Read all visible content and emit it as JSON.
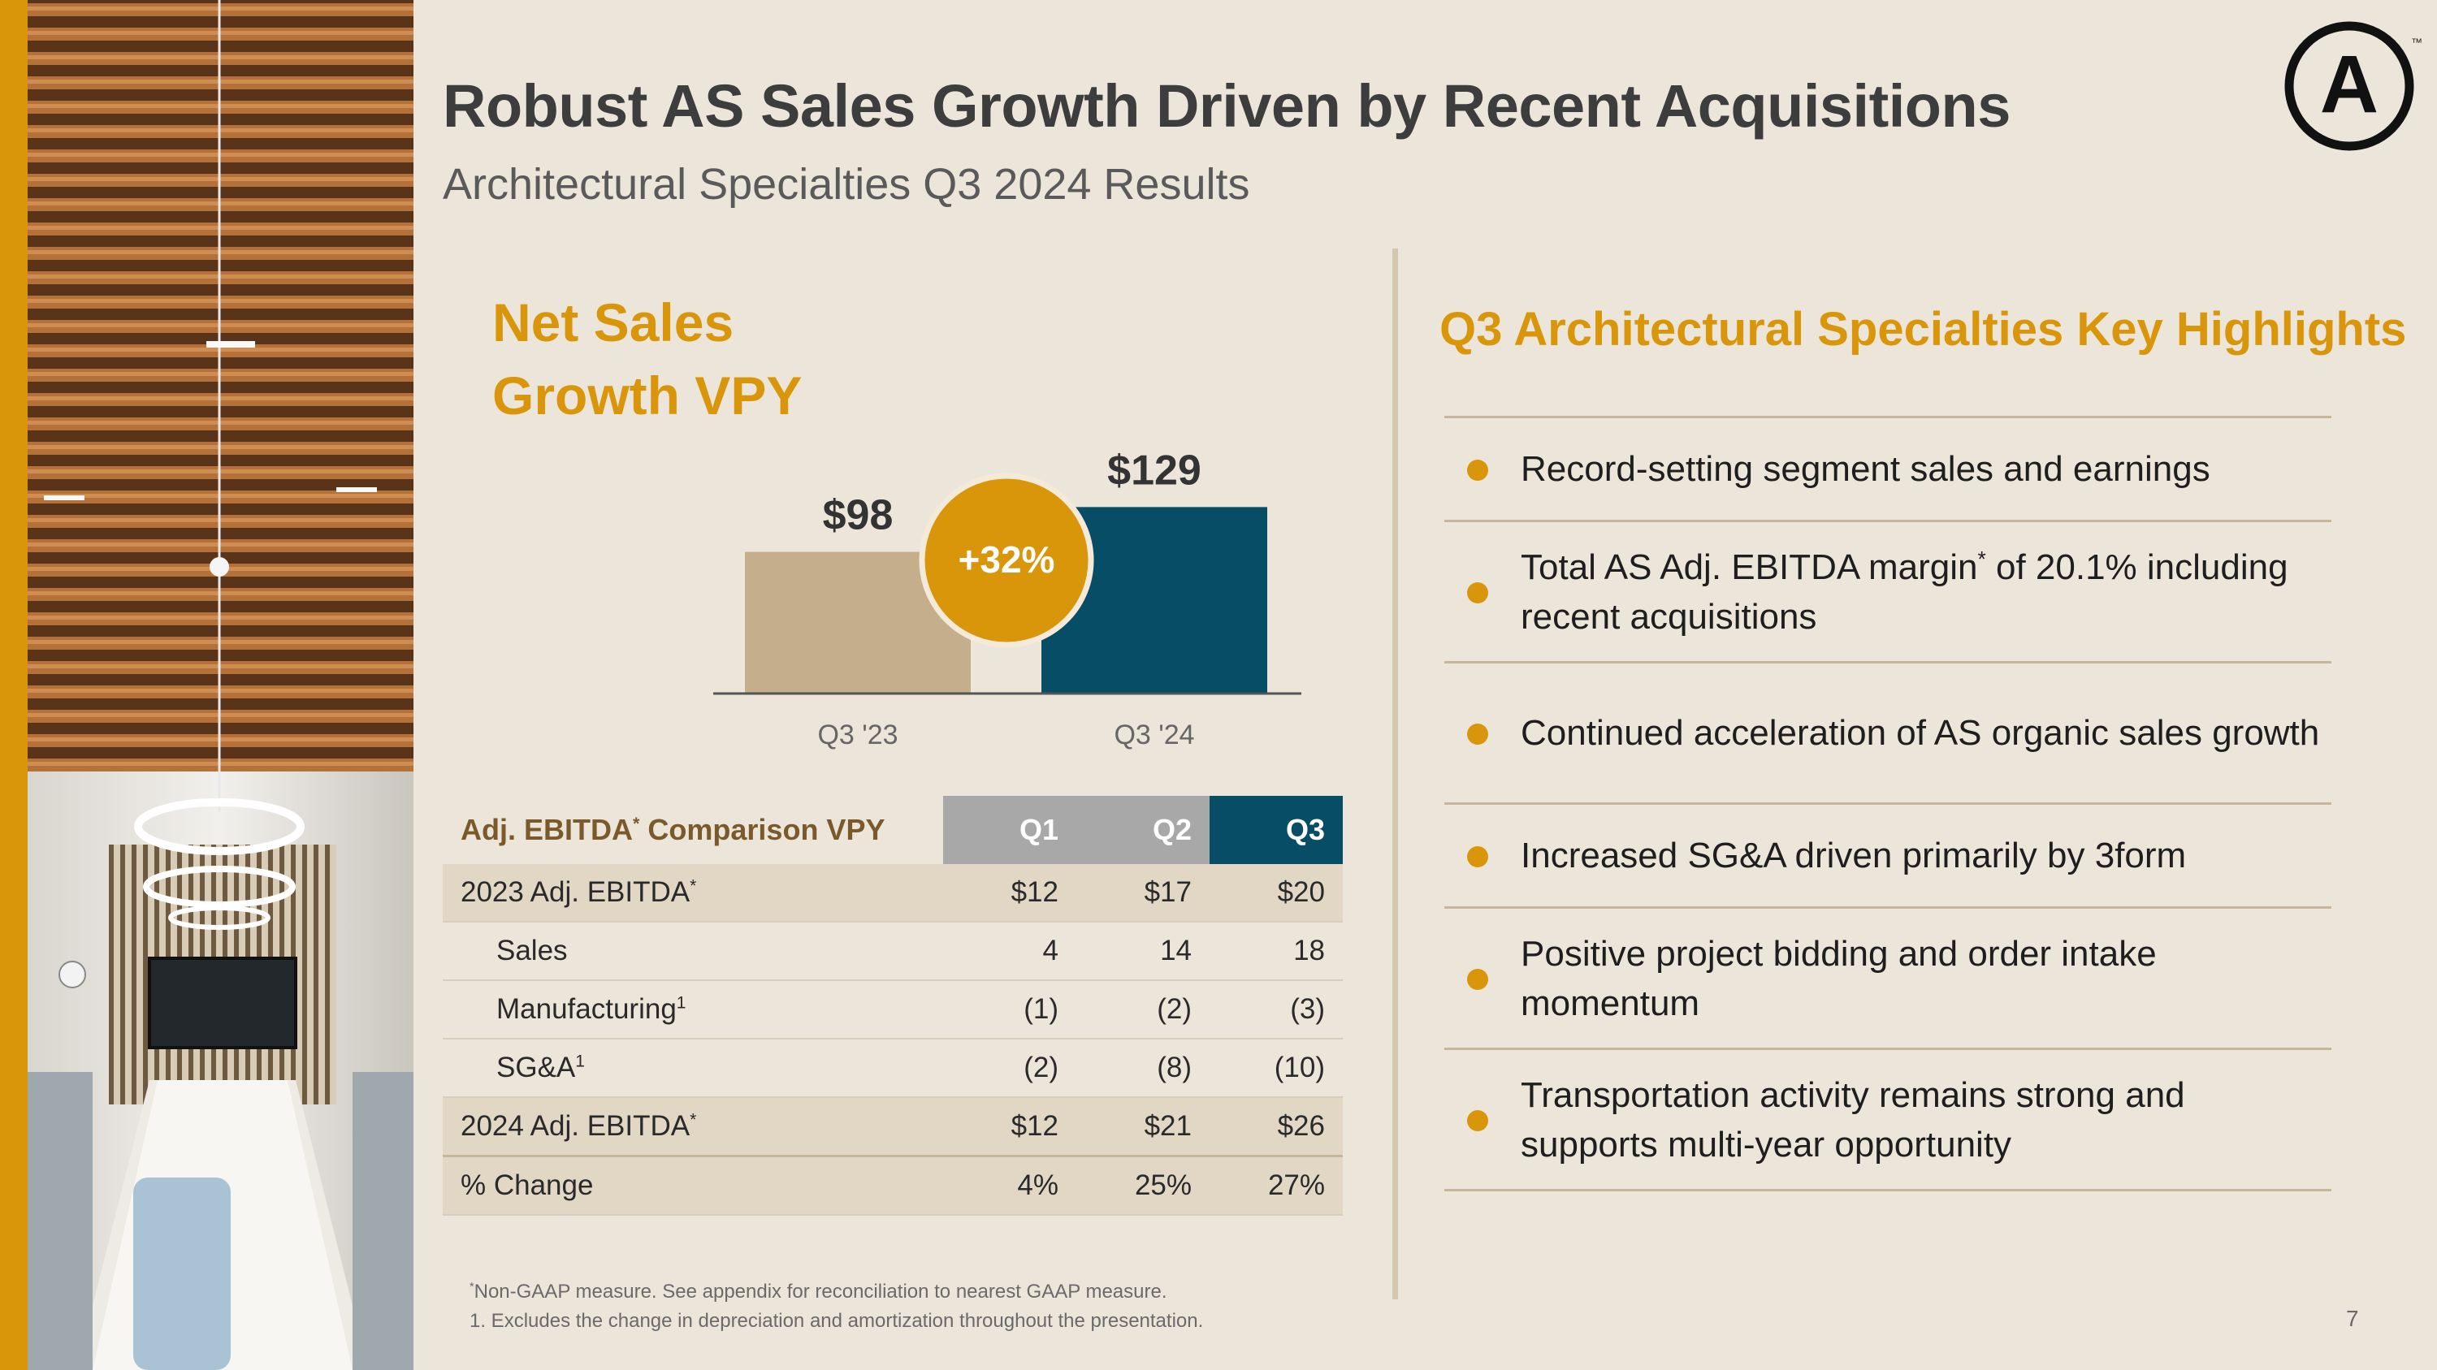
{
  "slide": {
    "title": "Robust AS Sales Growth Driven by Recent Acquisitions",
    "subtitle": "Architectural Specialties Q3 2024 Results",
    "logo_letter": "A",
    "logo_tm": "™",
    "page_number": "7"
  },
  "colors": {
    "accent": "#d9960a",
    "bar_prior": "#c4ae8c",
    "bar_current": "#074d66",
    "background": "#ece5da"
  },
  "chart_title_line1": "Net Sales",
  "chart_title_line2": "Growth VPY",
  "chart_data": {
    "type": "bar",
    "categories": [
      "Q3 '23",
      "Q3 '24"
    ],
    "values": [
      98,
      129
    ],
    "value_labels": [
      "$98",
      "$129"
    ],
    "growth_badge": "+32%",
    "title": "Net Sales Growth VPY"
  },
  "table": {
    "header": {
      "label": "Adj. EBITDA",
      "label_sup": "*",
      "label_rest": " Comparison VPY",
      "cols": [
        "Q1",
        "Q2",
        "Q3"
      ]
    },
    "rows": [
      {
        "label": "2023 Adj. EBITDA",
        "sup": "*",
        "values": [
          "$12",
          "$17",
          "$20"
        ]
      },
      {
        "label": "Sales",
        "sup": "",
        "values": [
          "4",
          "14",
          "18"
        ]
      },
      {
        "label": "Manufacturing",
        "sup": "1",
        "values": [
          "(1)",
          "(2)",
          "(3)"
        ]
      },
      {
        "label": "SG&A",
        "sup": "1",
        "values": [
          "(2)",
          "(8)",
          "(10)"
        ]
      },
      {
        "label": "2024 Adj. EBITDA",
        "sup": "*",
        "values": [
          "$12",
          "$21",
          "$26"
        ]
      },
      {
        "label": "% Change",
        "sup": "",
        "values": [
          "4%",
          "25%",
          "27%"
        ]
      }
    ]
  },
  "highlights": {
    "title": "Q3 Architectural Specialties Key Highlights",
    "items": [
      {
        "text": "Record-setting segment sales and earnings"
      },
      {
        "text_before": "Total AS Adj. EBITDA margin",
        "sup": "*",
        "text_after": " of 20.1% including recent acquisitions"
      },
      {
        "text": "Continued acceleration of AS organic sales growth"
      },
      {
        "text": "Increased SG&A driven primarily by 3form"
      },
      {
        "text": "Positive project bidding and order intake momentum"
      },
      {
        "text": "Transportation activity remains strong and supports multi-year opportunity"
      }
    ]
  },
  "footnotes": {
    "note1_sup": "*",
    "note1": "Non-GAAP measure. See appendix for reconciliation to nearest GAAP measure.",
    "note2": "1. Excludes the change in depreciation and amortization throughout the presentation."
  }
}
